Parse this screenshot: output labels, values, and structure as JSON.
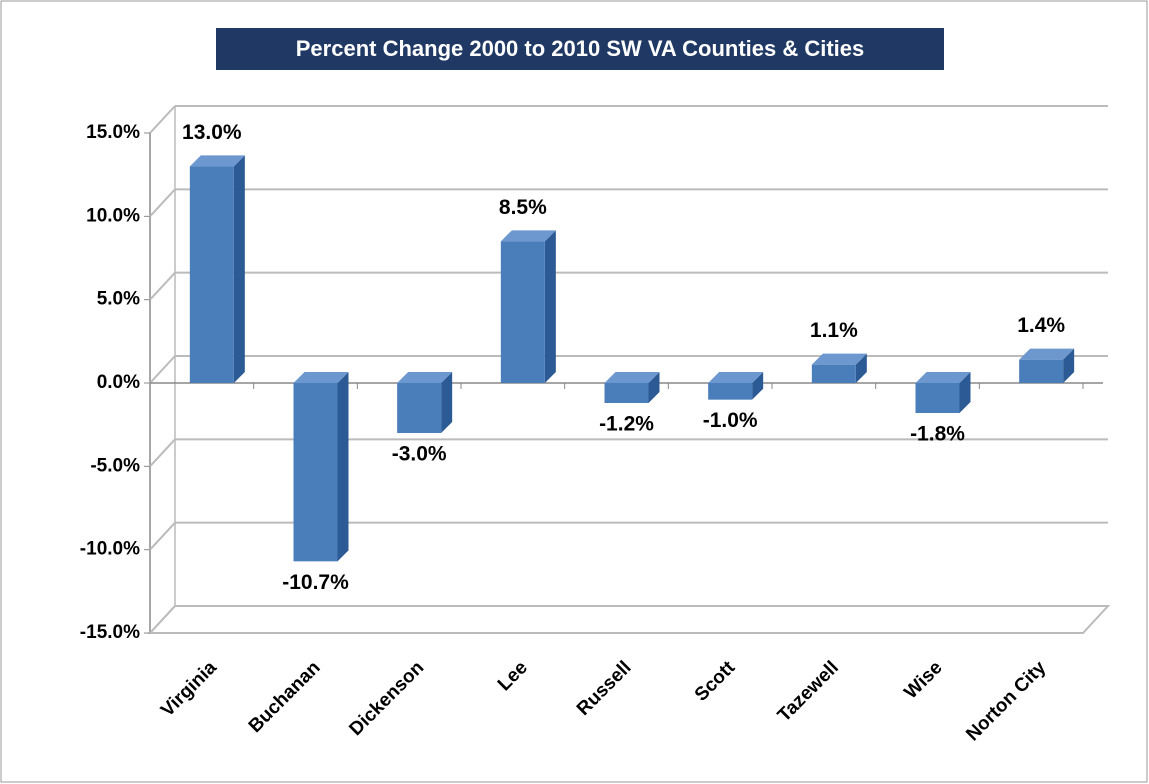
{
  "chart_data": {
    "type": "bar3d",
    "title": "Percent Change 2000 to 2010 SW VA Counties & Cities",
    "categories": [
      "Virginia",
      "Buchanan",
      "Dickenson",
      "Lee",
      "Russell",
      "Scott",
      "Tazewell",
      "Wise",
      "Norton City"
    ],
    "values": [
      13.0,
      -10.7,
      -3.0,
      8.5,
      -1.2,
      -1.0,
      1.1,
      -1.8,
      1.4
    ],
    "value_labels": [
      "13.0%",
      "-10.7%",
      "-3.0%",
      "8.5%",
      "-1.2%",
      "-1.0%",
      "1.1%",
      "-1.8%",
      "1.4%"
    ],
    "color": "#4a7ebb",
    "ylim": [
      -15,
      15
    ],
    "yticks": [
      {
        "value": 15,
        "label": "15.0%"
      },
      {
        "value": 10,
        "label": "10.0%"
      },
      {
        "value": 5,
        "label": "5.0%"
      },
      {
        "value": 0,
        "label": "0.0%"
      },
      {
        "value": -5,
        "label": "-5.0%"
      },
      {
        "value": -10,
        "label": "-10.0%"
      },
      {
        "value": -15,
        "label": "-15.0%"
      }
    ],
    "grid": true
  }
}
